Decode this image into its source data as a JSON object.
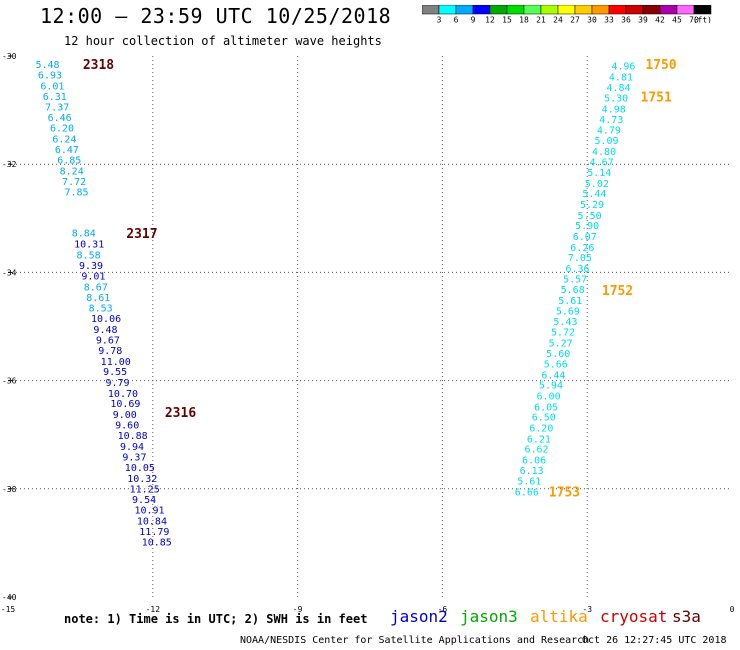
{
  "header": {
    "title": "12:00 — 23:59 UTC 10/25/2018",
    "subtitle": "12 hour collection of altimeter wave heights"
  },
  "colorbar": {
    "bins": [
      {
        "color": "#808080",
        "label": ""
      },
      {
        "color": "#00ffff",
        "label": "3"
      },
      {
        "color": "#00aaff",
        "label": "6"
      },
      {
        "color": "#0000ff",
        "label": "9"
      },
      {
        "color": "#00aa00",
        "label": "12"
      },
      {
        "color": "#00dd00",
        "label": "15"
      },
      {
        "color": "#55ff55",
        "label": "18"
      },
      {
        "color": "#aaff00",
        "label": "21"
      },
      {
        "color": "#ffff00",
        "label": "24"
      },
      {
        "color": "#ffcc00",
        "label": "27"
      },
      {
        "color": "#ff9900",
        "label": "30"
      },
      {
        "color": "#ff0000",
        "label": "33"
      },
      {
        "color": "#cc0000",
        "label": "36"
      },
      {
        "color": "#880000",
        "label": "39"
      },
      {
        "color": "#aa00aa",
        "label": "42"
      },
      {
        "color": "#ff66ff",
        "label": "45"
      },
      {
        "color": "#000000",
        "label": "70"
      }
    ],
    "unit": "(ft)"
  },
  "footer": {
    "note": "note: 1) Time is in UTC; 2) SWH is in feet",
    "credit": "NOAA/NESDIS Center for Satellite Applications and Research",
    "timestamp": "Oct 26 12:27:45 UTC 2018"
  },
  "legend": [
    {
      "name": "jason2",
      "color": "#0000cc"
    },
    {
      "name": "jason3",
      "color": "#00aa00"
    },
    {
      "name": "altika",
      "color": "#ff9900"
    },
    {
      "name": "cryosat",
      "color": "#cc0000"
    },
    {
      "name": "s3a",
      "color": "#660000"
    }
  ],
  "chart_data": {
    "type": "scatter",
    "title": "12:00 — 23:59 UTC 10/25/2018",
    "subtitle": "12 hour collection of altimeter wave heights",
    "xlim": [
      -15,
      0
    ],
    "ylim": [
      -40,
      -30
    ],
    "x_ticks": [
      "-15",
      "-12",
      "-9",
      "-6",
      "-3",
      "0"
    ],
    "y_ticks": [
      "-30",
      "-32",
      "-34",
      "-36",
      "-38",
      "-40"
    ],
    "grid": true,
    "tracks": [
      {
        "name": "s3a",
        "time_labels": [
          {
            "label": "2318",
            "x": -13.45,
            "y": -30.22
          },
          {
            "label": "2317",
            "x": -12.55,
            "y": -33.35
          },
          {
            "label": "2316",
            "x": -11.75,
            "y": -36.65
          }
        ],
        "points": [
          {
            "x": -14.43,
            "y": -30.22,
            "v": "5.48",
            "c": "#00aaff"
          },
          {
            "x": -14.38,
            "y": -30.42,
            "v": "6.93",
            "c": "#00aaff"
          },
          {
            "x": -14.33,
            "y": -30.62,
            "v": "6.01",
            "c": "#00aaff"
          },
          {
            "x": -14.28,
            "y": -30.81,
            "v": "6.31",
            "c": "#00aaff"
          },
          {
            "x": -14.23,
            "y": -31.01,
            "v": "7.37",
            "c": "#00aaff"
          },
          {
            "x": -14.18,
            "y": -31.2,
            "v": "6.46",
            "c": "#00aaff"
          },
          {
            "x": -14.13,
            "y": -31.4,
            "v": "6.20",
            "c": "#00aaff"
          },
          {
            "x": -14.08,
            "y": -31.6,
            "v": "6.24",
            "c": "#00aaff"
          },
          {
            "x": -14.03,
            "y": -31.79,
            "v": "6.47",
            "c": "#00aaff"
          },
          {
            "x": -13.98,
            "y": -31.99,
            "v": "6.85",
            "c": "#00aaff"
          },
          {
            "x": -13.93,
            "y": -32.19,
            "v": "8.24",
            "c": "#00aaff"
          },
          {
            "x": -13.88,
            "y": -32.38,
            "v": "7.72",
            "c": "#00aaff"
          },
          {
            "x": -13.83,
            "y": -32.58,
            "v": "7.85",
            "c": "#00aaff"
          },
          {
            "x": -13.68,
            "y": -33.34,
            "v": "8.84",
            "c": "#00aaff"
          },
          {
            "x": -13.63,
            "y": -33.54,
            "v": "10.31",
            "c": "#0000cc"
          },
          {
            "x": -13.58,
            "y": -33.74,
            "v": "8.58",
            "c": "#00aaff"
          },
          {
            "x": -13.53,
            "y": -33.94,
            "v": "9.39",
            "c": "#0000cc"
          },
          {
            "x": -13.48,
            "y": -34.13,
            "v": "9.01",
            "c": "#0000cc"
          },
          {
            "x": -13.43,
            "y": -34.33,
            "v": "8.67",
            "c": "#00aaff"
          },
          {
            "x": -13.38,
            "y": -34.53,
            "v": "8.61",
            "c": "#00aaff"
          },
          {
            "x": -13.33,
            "y": -34.72,
            "v": "8.53",
            "c": "#00aaff"
          },
          {
            "x": -13.28,
            "y": -34.92,
            "v": "10.06",
            "c": "#0000cc"
          },
          {
            "x": -13.23,
            "y": -35.12,
            "v": "9.48",
            "c": "#0000cc"
          },
          {
            "x": -13.18,
            "y": -35.31,
            "v": "9.67",
            "c": "#0000cc"
          },
          {
            "x": -13.13,
            "y": -35.51,
            "v": "9.78",
            "c": "#0000cc"
          },
          {
            "x": -13.08,
            "y": -35.71,
            "v": "11.00",
            "c": "#0000cc"
          },
          {
            "x": -13.03,
            "y": -35.9,
            "v": "9.55",
            "c": "#0000cc"
          },
          {
            "x": -12.98,
            "y": -36.1,
            "v": "9.79",
            "c": "#0000cc"
          },
          {
            "x": -12.93,
            "y": -36.3,
            "v": "10.70",
            "c": "#0000cc"
          },
          {
            "x": -12.88,
            "y": -36.49,
            "v": "10.69",
            "c": "#0000cc"
          },
          {
            "x": -12.83,
            "y": -36.69,
            "v": "9.00",
            "c": "#0000cc"
          },
          {
            "x": -12.78,
            "y": -36.89,
            "v": "9.60",
            "c": "#0000cc"
          },
          {
            "x": -12.73,
            "y": -37.08,
            "v": "10.88",
            "c": "#0000cc"
          },
          {
            "x": -12.68,
            "y": -37.28,
            "v": "9.94",
            "c": "#0000cc"
          },
          {
            "x": -12.63,
            "y": -37.48,
            "v": "9.37",
            "c": "#0000cc"
          },
          {
            "x": -12.58,
            "y": -37.67,
            "v": "10.05",
            "c": "#0000cc"
          },
          {
            "x": -12.53,
            "y": -37.87,
            "v": "10.32",
            "c": "#0000cc"
          },
          {
            "x": -12.48,
            "y": -38.07,
            "v": "11.25",
            "c": "#0000cc"
          },
          {
            "x": -12.43,
            "y": -38.26,
            "v": "9.54",
            "c": "#0000cc"
          },
          {
            "x": -12.38,
            "y": -38.46,
            "v": "10.91",
            "c": "#0000cc"
          },
          {
            "x": -12.33,
            "y": -38.66,
            "v": "10.84",
            "c": "#0000cc"
          },
          {
            "x": -12.28,
            "y": -38.85,
            "v": "11.79",
            "c": "#0000cc"
          },
          {
            "x": -12.23,
            "y": -39.05,
            "v": "10.85",
            "c": "#0000cc"
          }
        ]
      },
      {
        "name": "altika",
        "time_labels": [
          {
            "label": "1750",
            "x": -2.5,
            "y": -30.22
          },
          {
            "label": "1751",
            "x": -2.6,
            "y": -30.82
          },
          {
            "label": "1752",
            "x": -3.4,
            "y": -34.4
          },
          {
            "label": "1753",
            "x": -4.5,
            "y": -38.12
          }
        ],
        "points": [
          {
            "x": -2.5,
            "y": -30.25,
            "v": "4.96",
            "c": "#00ddee"
          },
          {
            "x": -2.55,
            "y": -30.45,
            "v": "4.81",
            "c": "#00ddee"
          },
          {
            "x": -2.6,
            "y": -30.65,
            "v": "4.84",
            "c": "#00ddee"
          },
          {
            "x": -2.65,
            "y": -30.84,
            "v": "5.30",
            "c": "#00ddee"
          },
          {
            "x": -2.7,
            "y": -31.04,
            "v": "4.98",
            "c": "#00ddee"
          },
          {
            "x": -2.75,
            "y": -31.24,
            "v": "4.73",
            "c": "#00ddee"
          },
          {
            "x": -2.8,
            "y": -31.43,
            "v": "4.79",
            "c": "#00ddee"
          },
          {
            "x": -2.85,
            "y": -31.63,
            "v": "5.09",
            "c": "#00ddee"
          },
          {
            "x": -2.9,
            "y": -31.83,
            "v": "4.80",
            "c": "#00ddee"
          },
          {
            "x": -2.95,
            "y": -32.02,
            "v": "4.67",
            "c": "#00ddee"
          },
          {
            "x": -3.0,
            "y": -32.22,
            "v": "5.14",
            "c": "#00ddee"
          },
          {
            "x": -3.05,
            "y": -32.42,
            "v": "5.02",
            "c": "#00ddee"
          },
          {
            "x": -3.1,
            "y": -32.61,
            "v": "5.44",
            "c": "#00ddee"
          },
          {
            "x": -3.15,
            "y": -32.81,
            "v": "5.29",
            "c": "#00ddee"
          },
          {
            "x": -3.2,
            "y": -33.01,
            "v": "5.50",
            "c": "#00ddee"
          },
          {
            "x": -3.25,
            "y": -33.2,
            "v": "5.90",
            "c": "#00ddee"
          },
          {
            "x": -3.3,
            "y": -33.4,
            "v": "6.07",
            "c": "#00ddee"
          },
          {
            "x": -3.35,
            "y": -33.6,
            "v": "6.26",
            "c": "#00ddee"
          },
          {
            "x": -3.4,
            "y": -33.79,
            "v": "7.05",
            "c": "#00ddee"
          },
          {
            "x": -3.45,
            "y": -33.99,
            "v": "6.36",
            "c": "#00ddee"
          },
          {
            "x": -3.5,
            "y": -34.19,
            "v": "5.57",
            "c": "#00ddee"
          },
          {
            "x": -3.55,
            "y": -34.38,
            "v": "5.68",
            "c": "#00ddee"
          },
          {
            "x": -3.6,
            "y": -34.58,
            "v": "5.61",
            "c": "#00ddee"
          },
          {
            "x": -3.65,
            "y": -34.78,
            "v": "5.69",
            "c": "#00ddee"
          },
          {
            "x": -3.7,
            "y": -34.97,
            "v": "5.43",
            "c": "#00ddee"
          },
          {
            "x": -3.75,
            "y": -35.17,
            "v": "5.72",
            "c": "#00ddee"
          },
          {
            "x": -3.8,
            "y": -35.37,
            "v": "5.27",
            "c": "#00ddee"
          },
          {
            "x": -3.85,
            "y": -35.56,
            "v": "5.60",
            "c": "#00ddee"
          },
          {
            "x": -3.9,
            "y": -35.76,
            "v": "5.66",
            "c": "#00ddee"
          },
          {
            "x": -3.95,
            "y": -35.96,
            "v": "6.44",
            "c": "#00ddee"
          },
          {
            "x": -4.0,
            "y": -36.15,
            "v": "5.94",
            "c": "#00ddee"
          },
          {
            "x": -4.05,
            "y": -36.35,
            "v": "6.00",
            "c": "#00ddee"
          },
          {
            "x": -4.1,
            "y": -36.55,
            "v": "6.05",
            "c": "#00ddee"
          },
          {
            "x": -4.15,
            "y": -36.74,
            "v": "6.50",
            "c": "#00ddee"
          },
          {
            "x": -4.2,
            "y": -36.94,
            "v": "6.20",
            "c": "#00ddee"
          },
          {
            "x": -4.25,
            "y": -37.14,
            "v": "6.21",
            "c": "#00ddee"
          },
          {
            "x": -4.3,
            "y": -37.33,
            "v": "6.62",
            "c": "#00ddee"
          },
          {
            "x": -4.35,
            "y": -37.53,
            "v": "6.06",
            "c": "#00ddee"
          },
          {
            "x": -4.4,
            "y": -37.73,
            "v": "6.13",
            "c": "#00ddee"
          },
          {
            "x": -4.45,
            "y": -37.92,
            "v": "5.61",
            "c": "#00ddee"
          },
          {
            "x": -4.5,
            "y": -38.12,
            "v": "6.66",
            "c": "#00ddee"
          }
        ]
      }
    ]
  }
}
